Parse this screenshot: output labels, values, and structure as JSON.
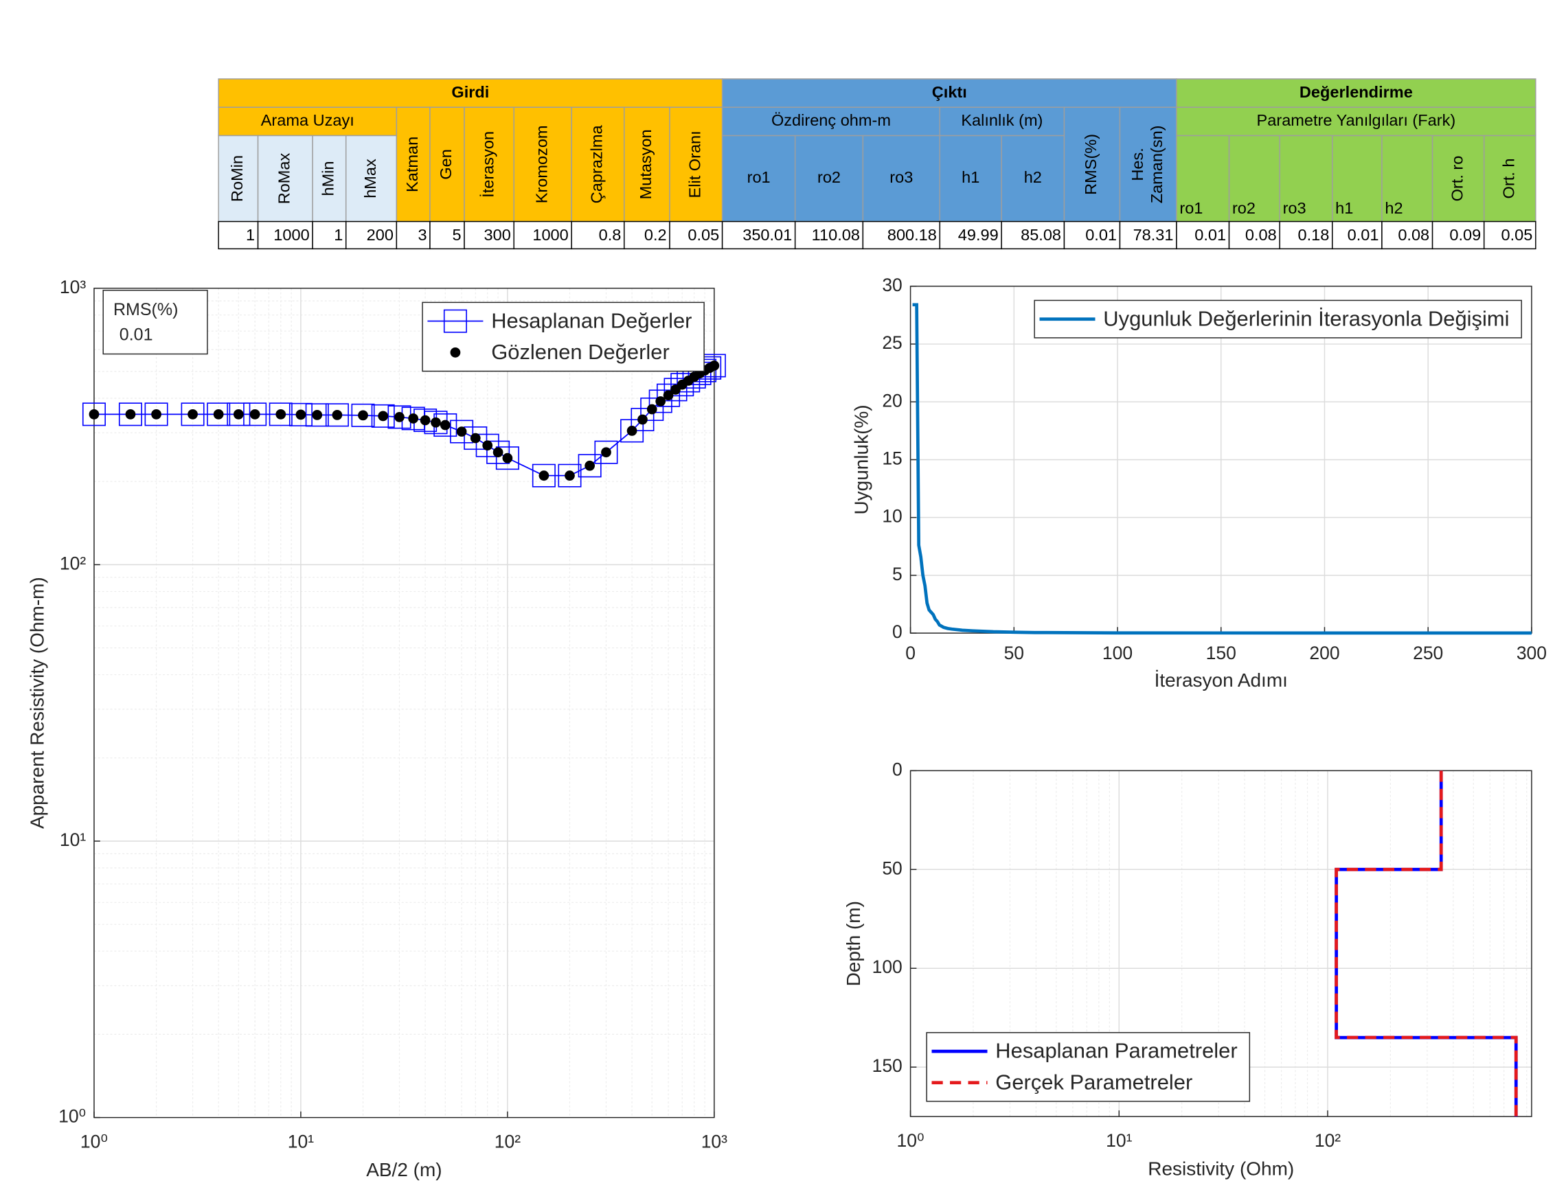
{
  "table": {
    "groups": [
      {
        "title": "Girdi",
        "items": [
          {
            "title": "Arama Uzayı",
            "columns": [
              "RoMin",
              "RoMax",
              "hMin",
              "hMax"
            ]
          },
          "Katman",
          "Gen",
          "İterasyon",
          "Kromozom",
          "Çaprazlma",
          "Mutasyon",
          "Elit Oranı"
        ]
      },
      {
        "title": "Çıktı",
        "items": [
          {
            "title": "Özdirenç ohm-m",
            "columns": [
              "ro1",
              "ro2",
              "ro3"
            ]
          },
          {
            "title": "Kalınlık (m)",
            "columns": [
              "h1",
              "h2"
            ]
          },
          "RMS(%)",
          [
            "Hes.",
            "Zaman(sn)"
          ]
        ]
      },
      {
        "title": "Değerlendirme",
        "items": [
          {
            "title": "Parametre Yanılgıları (Fark)",
            "columns": [
              "ro1",
              "ro2",
              "ro3",
              "h1",
              "h2",
              "Ort. ro",
              "Ort. h"
            ]
          }
        ]
      }
    ],
    "values": [
      1,
      1000,
      1,
      200,
      3,
      5,
      300,
      1000,
      0.8,
      0.2,
      0.05,
      350.01,
      110.08,
      800.18,
      49.99,
      85.08,
      0.01,
      78.31,
      0.01,
      0.08,
      0.18,
      0.01,
      0.08,
      0.09,
      0.05
    ]
  },
  "chart_data": [
    {
      "type": "line",
      "xlog": true,
      "ylog": true,
      "xlabel": "AB/2 (m)",
      "ylabel": "Apparent Resistivity (Ohm-m)",
      "xlim": [
        1,
        1000
      ],
      "ylim": [
        1,
        1000
      ],
      "xticks": [
        {
          "value": 1,
          "label": "10⁰"
        },
        {
          "value": 10,
          "label": "10¹"
        },
        {
          "value": 100,
          "label": "10²"
        },
        {
          "value": 1000,
          "label": "10³"
        }
      ],
      "yticks": [
        {
          "value": 1,
          "label": "10⁰"
        },
        {
          "value": 10,
          "label": "10¹"
        },
        {
          "value": 100,
          "label": "10²"
        },
        {
          "value": 1000,
          "label": "10³"
        }
      ],
      "grid": true,
      "legend": "upper right",
      "annotation": {
        "title": "RMS(%)",
        "value": 0.01
      },
      "x": [
        1,
        1.5,
        2,
        3,
        4,
        5,
        6,
        8,
        10,
        12,
        15,
        20,
        25,
        30,
        35,
        40,
        45,
        50,
        60,
        70,
        80,
        90,
        100,
        150,
        200,
        250,
        300,
        400,
        450,
        500,
        550,
        600,
        650,
        700,
        750,
        800,
        850,
        900,
        950,
        1000
      ],
      "series": [
        {
          "name": "Hesaplanan Değerler",
          "color": "#0000ff",
          "marker": "square",
          "line": true,
          "values": [
            350,
            350,
            350,
            350,
            350,
            350,
            350,
            350,
            349,
            348,
            348,
            347,
            345,
            342,
            338,
            333,
            327,
            320,
            303,
            287,
            270,
            255,
            243,
            210,
            210,
            228,
            255,
            305,
            335,
            365,
            390,
            410,
            430,
            448,
            463,
            478,
            492,
            504,
            515,
            525
          ]
        },
        {
          "name": "Gözlenen Değerler",
          "color": "#000000",
          "marker": "dot",
          "line": false,
          "values": [
            350,
            350,
            350,
            350,
            350,
            350,
            350,
            350,
            349,
            348,
            348,
            347,
            345,
            342,
            338,
            333,
            327,
            320,
            303,
            287,
            270,
            255,
            243,
            210,
            210,
            228,
            255,
            305,
            335,
            365,
            390,
            410,
            430,
            448,
            463,
            478,
            492,
            504,
            515,
            525
          ]
        }
      ]
    },
    {
      "type": "line",
      "xlabel": "İterasyon Adımı",
      "ylabel": "Uygunluk(%)",
      "xlim": [
        0,
        300
      ],
      "ylim": [
        0,
        30
      ],
      "xticks": [
        0,
        50,
        100,
        150,
        200,
        250,
        300
      ],
      "yticks": [
        0,
        5,
        10,
        15,
        20,
        25,
        30
      ],
      "grid": true,
      "legend": "upper right",
      "x": [
        1,
        2,
        3,
        4,
        5,
        6,
        7,
        8,
        9,
        10,
        11,
        12,
        13,
        14,
        15,
        16,
        18,
        20,
        25,
        30,
        40,
        50,
        60,
        100,
        150,
        200,
        300
      ],
      "series": [
        {
          "name": "Uygunluk Değerlerinin İterasyonla Değişimi",
          "color": "#0072bd",
          "line": true,
          "values": [
            28.4,
            28.4,
            28.4,
            7.6,
            6.6,
            5.0,
            4.1,
            2.6,
            2.0,
            1.8,
            1.6,
            1.2,
            1.0,
            0.7,
            0.6,
            0.5,
            0.4,
            0.35,
            0.25,
            0.2,
            0.12,
            0.08,
            0.05,
            0.02,
            0.015,
            0.01,
            0.01
          ]
        }
      ]
    },
    {
      "type": "line",
      "xlog": true,
      "yreverse": true,
      "xlabel": "Resistivity (Ohm)",
      "ylabel": "Depth (m)",
      "xlim": [
        1,
        950
      ],
      "ylim": [
        0,
        175
      ],
      "xticks": [
        {
          "value": 1,
          "label": "10⁰"
        },
        {
          "value": 10,
          "label": "10¹"
        },
        {
          "value": 100,
          "label": "10²"
        }
      ],
      "yticks": [
        0,
        50,
        100,
        150
      ],
      "grid": true,
      "legend": "lower left",
      "series": [
        {
          "name": "Hesaplanan Parametreler",
          "color": "#0000ff",
          "line": true,
          "x": [
            350.01,
            350.01,
            110.08,
            110.08,
            800.18,
            800.18
          ],
          "values": [
            0,
            49.99,
            49.99,
            135.07,
            135.07,
            175
          ]
        },
        {
          "name": "Gerçek Parametreler",
          "color": "#e41a1c",
          "line": true,
          "dashed": true,
          "x": [
            350,
            350,
            110,
            110,
            800,
            800
          ],
          "values": [
            0,
            50,
            50,
            135,
            135,
            175
          ]
        }
      ]
    }
  ]
}
